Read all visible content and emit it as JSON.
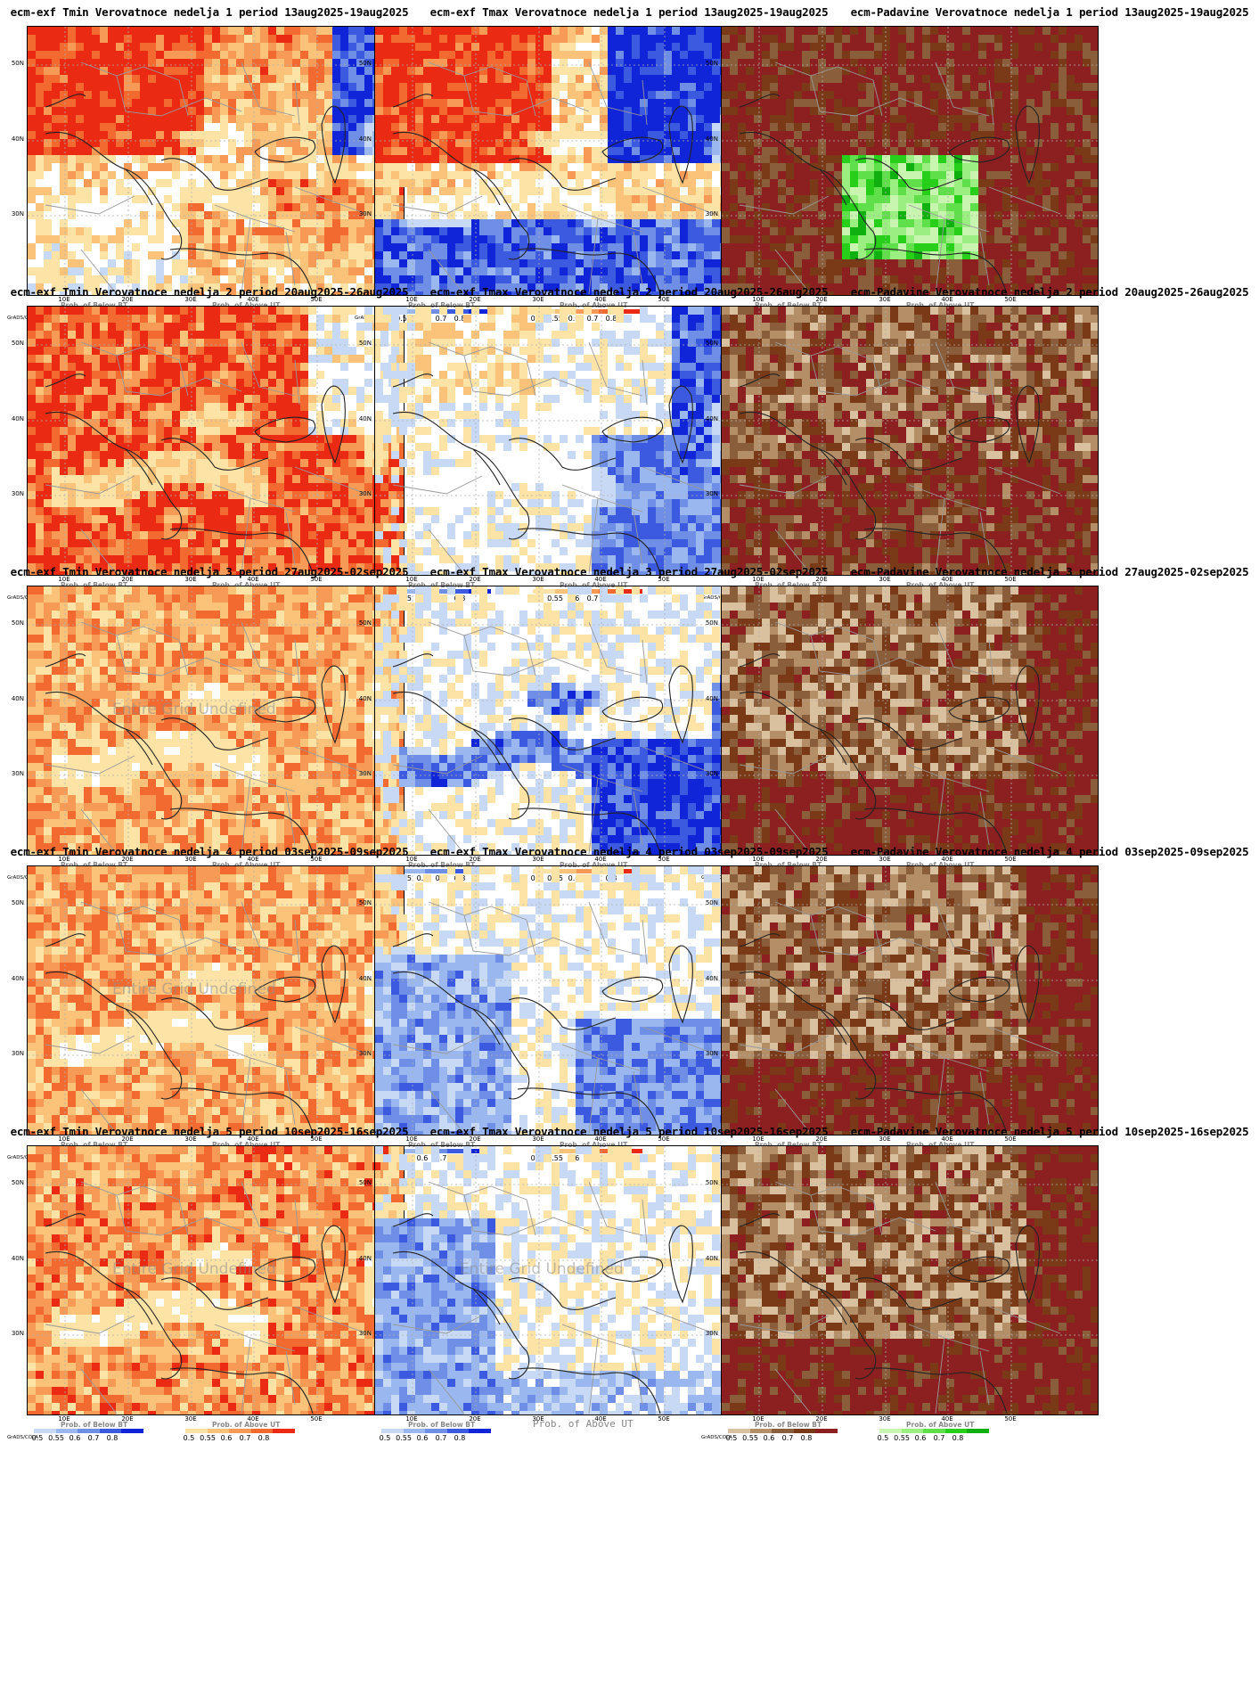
{
  "panels": [
    {
      "title": "ecm-exf Tmin Verovatnoce nedelja 1 period 13aug2025-19aug2025",
      "kind": "tmin",
      "week": 1,
      "legend_left": "Prob. of Below BT",
      "legend_right": "Prob. of Above UT",
      "overlay": ""
    },
    {
      "title": "ecm-exf Tmax Verovatnoce nedelja 1 period 13aug2025-19aug2025",
      "kind": "tmax",
      "week": 1,
      "legend_left": "Prob. of Below BT",
      "legend_right": "Prob. of Above UT",
      "overlay": ""
    },
    {
      "title": "ecm-Padavine Verovatnoce nedelja 1 period 13aug2025-19aug2025",
      "kind": "prec",
      "week": 1,
      "legend_left": "Prob. of Below BT",
      "legend_right": "Prob. of Above UT",
      "overlay": ""
    },
    {
      "title": "ecm-exf Tmin Verovatnoce nedelja 2 period 20aug2025-26aug2025",
      "kind": "tmin",
      "week": 2,
      "legend_left": "Prob. of Below BT",
      "legend_right": "Prob. of Above UT",
      "overlay": ""
    },
    {
      "title": "ecm-exf Tmax Verovatnoce nedelja 2 period 20aug2025-26aug2025",
      "kind": "tmax",
      "week": 2,
      "legend_left": "Prob. of Below BT",
      "legend_right": "Prob. of Above UT",
      "overlay": ""
    },
    {
      "title": "ecm-Padavine Verovatnoce nedelja 2 period 20aug2025-26aug2025",
      "kind": "prec",
      "week": 2,
      "legend_left": "Prob. of Below BT",
      "legend_right": "Prob. of Above UT",
      "overlay": ""
    },
    {
      "title": "ecm-exf Tmin Verovatnoce nedelja 3 period 27aug2025-02sep2025",
      "kind": "tmin",
      "week": 3,
      "legend_left": "Prob. of Below BT",
      "legend_right": "Prob. of Above UT",
      "overlay": "Entire Grid Undefined"
    },
    {
      "title": "ecm-exf Tmax Verovatnoce nedelja 3 period 27aug2025-02sep2025",
      "kind": "tmax",
      "week": 3,
      "legend_left": "Prob. of Below BT",
      "legend_right": "Prob. of Above UT",
      "overlay": ""
    },
    {
      "title": "ecm-Padavine Verovatnoce nedelja 3 period 27aug2025-02sep2025",
      "kind": "prec",
      "week": 3,
      "legend_left": "Prob. of Below BT",
      "legend_right": "Prob. of Above UT",
      "overlay": ""
    },
    {
      "title": "ecm-exf Tmin Verovatnoce nedelja 4 period 03sep2025-09sep2025",
      "kind": "tmin",
      "week": 4,
      "legend_left": "Prob. of Below BT",
      "legend_right": "Prob. of Above UT",
      "overlay": "Entire Grid Undefined"
    },
    {
      "title": "ecm-exf Tmax Verovatnoce nedelja 4 period 03sep2025-09sep2025",
      "kind": "tmax",
      "week": 4,
      "legend_left": "Prob. of Below BT",
      "legend_right": "Prob. of Above UT",
      "overlay": ""
    },
    {
      "title": "ecm-Padavine Verovatnoce nedelja 4 period 03sep2025-09sep2025",
      "kind": "prec",
      "week": 4,
      "legend_left": "Prob. of Below BT",
      "legend_right": "Prob. of Above UT",
      "overlay": ""
    },
    {
      "title": "ecm-exf Tmin Verovatnoce nedelja 5 period 10sep2025-16sep2025",
      "kind": "tmin",
      "week": 5,
      "legend_left": "Prob. of Below BT",
      "legend_right": "Prob. of Above UT",
      "overlay": "Entire Grid Undefined"
    },
    {
      "title": "ecm-exf Tmax Verovatnoce nedelja 5 period 10sep2025-16sep2025",
      "kind": "tmax",
      "week": 5,
      "legend_left": "Prob. of Below BT",
      "legend_right": "Prob. of Above UT",
      "overlay": "Entire Grid Undefined"
    },
    {
      "title": "ecm-Padavine Verovatnoce nedelja 5 period 10sep2025-16sep2025",
      "kind": "prec",
      "week": 5,
      "legend_left": "Prob. of Below BT",
      "legend_right": "Prob. of Above UT",
      "overlay": ""
    }
  ],
  "axes": {
    "x_ticks": [
      "10E",
      "20E",
      "30E",
      "40E",
      "50E"
    ],
    "y_ticks": [
      "50N",
      "40N",
      "30N"
    ]
  },
  "colorbar_labels": [
    "0.5",
    "0.55",
    "0.6",
    "0.7",
    "0.8"
  ],
  "grads_label": "GrADS/COLA",
  "extra_label": "Prob. of Above UT",
  "colors": {
    "below_temp": [
      "#c8d9f5",
      "#9ab8ef",
      "#6f8fe6",
      "#3c5ae0",
      "#1024d8"
    ],
    "above_temp": [
      "#fde3a6",
      "#fbc27a",
      "#f79a55",
      "#f26a30",
      "#ea2a12"
    ],
    "below_prec": [
      "#d9c19f",
      "#b48e66",
      "#8a5e3a",
      "#7a3a17",
      "#8c2020"
    ],
    "above_prec": [
      "#c8f5b0",
      "#9aef80",
      "#5fe04a",
      "#27cf1a",
      "#10b010"
    ],
    "coast": "#222222",
    "border": "#999999",
    "gridline": "#b0b0b0"
  }
}
